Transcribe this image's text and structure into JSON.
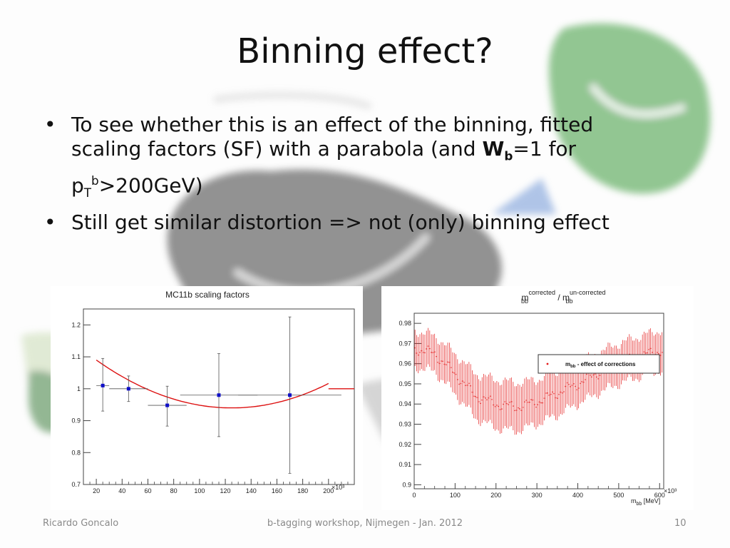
{
  "slide": {
    "title": "Binning effect?",
    "bullets": {
      "b1_pre": "To see whether this is an effect of the binning, fitted scaling factors (SF) with a parabola (and ",
      "b1_W": "W",
      "b1_Wsub": "b",
      "b1_mid": "=1 for p",
      "b1_Tsub": "T",
      "b1_bsup": "b",
      "b1_post": ">200GeV)",
      "b2": "Still get similar distortion => not (only) binning effect"
    },
    "footer": {
      "author": "Ricardo Goncalo",
      "event": "b-tagging workshop, Nijmegen - Jan. 2012",
      "page": "10"
    }
  },
  "chart_data": [
    {
      "type": "scatter",
      "title": "MC11b scaling factors",
      "x_multiplier": "×10³",
      "xlim": [
        10,
        220
      ],
      "ylim": [
        0.7,
        1.25
      ],
      "x_ticks": [
        "20",
        "40",
        "60",
        "80",
        "100",
        "120",
        "140",
        "160",
        "180",
        "200"
      ],
      "y_ticks": [
        "0.7",
        "0.8",
        "0.9",
        "1",
        "1.1",
        "1.2"
      ],
      "points": [
        {
          "x": 25,
          "y": 1.01,
          "xerr": 5,
          "yerr_lo": 0.08,
          "yerr_hi": 0.085
        },
        {
          "x": 45,
          "y": 1.0,
          "xerr": 15,
          "yerr_lo": 0.04,
          "yerr_hi": 0.04
        },
        {
          "x": 75,
          "y": 0.948,
          "xerr": 15,
          "yerr_lo": 0.065,
          "yerr_hi": 0.06
        },
        {
          "x": 115,
          "y": 0.98,
          "xerr": 30,
          "yerr_lo": 0.13,
          "yerr_hi": 0.13
        },
        {
          "x": 170,
          "y": 0.98,
          "xerr": 40,
          "yerr_lo": 0.245,
          "yerr_hi": 0.245
        }
      ],
      "fit": {
        "a": 1.36e-05,
        "x0": 125,
        "c": 0.94,
        "x_from": 20,
        "x_to": 200,
        "flat_from": 200,
        "flat_to": 220,
        "flat_value": 1.0
      },
      "point_color": "#1010c8",
      "fit_color": "#dd1111"
    },
    {
      "type": "scatter",
      "title_main": "m",
      "title_sub1": "bb",
      "title_sup1": "corrected",
      "title_slash": " / m",
      "title_sub2": "bb",
      "title_sup2": "un-corrected",
      "xlabel_main": "m",
      "xlabel_sub": "bb",
      "xlabel_unit": " [MeV]",
      "x_multiplier": "×10³",
      "xlim": [
        0,
        610
      ],
      "ylim": [
        0.898,
        0.985
      ],
      "x_ticks": [
        "0",
        "100",
        "200",
        "300",
        "400",
        "500",
        "600"
      ],
      "y_ticks": [
        "0.9",
        "0.91",
        "0.92",
        "0.93",
        "0.94",
        "0.95",
        "0.96",
        "0.97",
        "0.98"
      ],
      "legend": {
        "label_main": "m",
        "label_sub": "bb",
        "label_rest": " - effect of corrections"
      },
      "series": [
        {
          "x": 0,
          "y": 0.9675,
          "err": 0.009
        },
        {
          "x": 50,
          "y": 0.965,
          "err": 0.009
        },
        {
          "x": 100,
          "y": 0.955,
          "err": 0.01
        },
        {
          "x": 150,
          "y": 0.944,
          "err": 0.011
        },
        {
          "x": 200,
          "y": 0.94,
          "err": 0.012
        },
        {
          "x": 250,
          "y": 0.9385,
          "err": 0.012
        },
        {
          "x": 300,
          "y": 0.941,
          "err": 0.011
        },
        {
          "x": 350,
          "y": 0.9455,
          "err": 0.011
        },
        {
          "x": 400,
          "y": 0.95,
          "err": 0.01
        },
        {
          "x": 450,
          "y": 0.9555,
          "err": 0.01
        },
        {
          "x": 500,
          "y": 0.96,
          "err": 0.01
        },
        {
          "x": 550,
          "y": 0.9635,
          "err": 0.01
        },
        {
          "x": 600,
          "y": 0.9665,
          "err": 0.01
        }
      ],
      "color": "#e31a1a"
    }
  ]
}
